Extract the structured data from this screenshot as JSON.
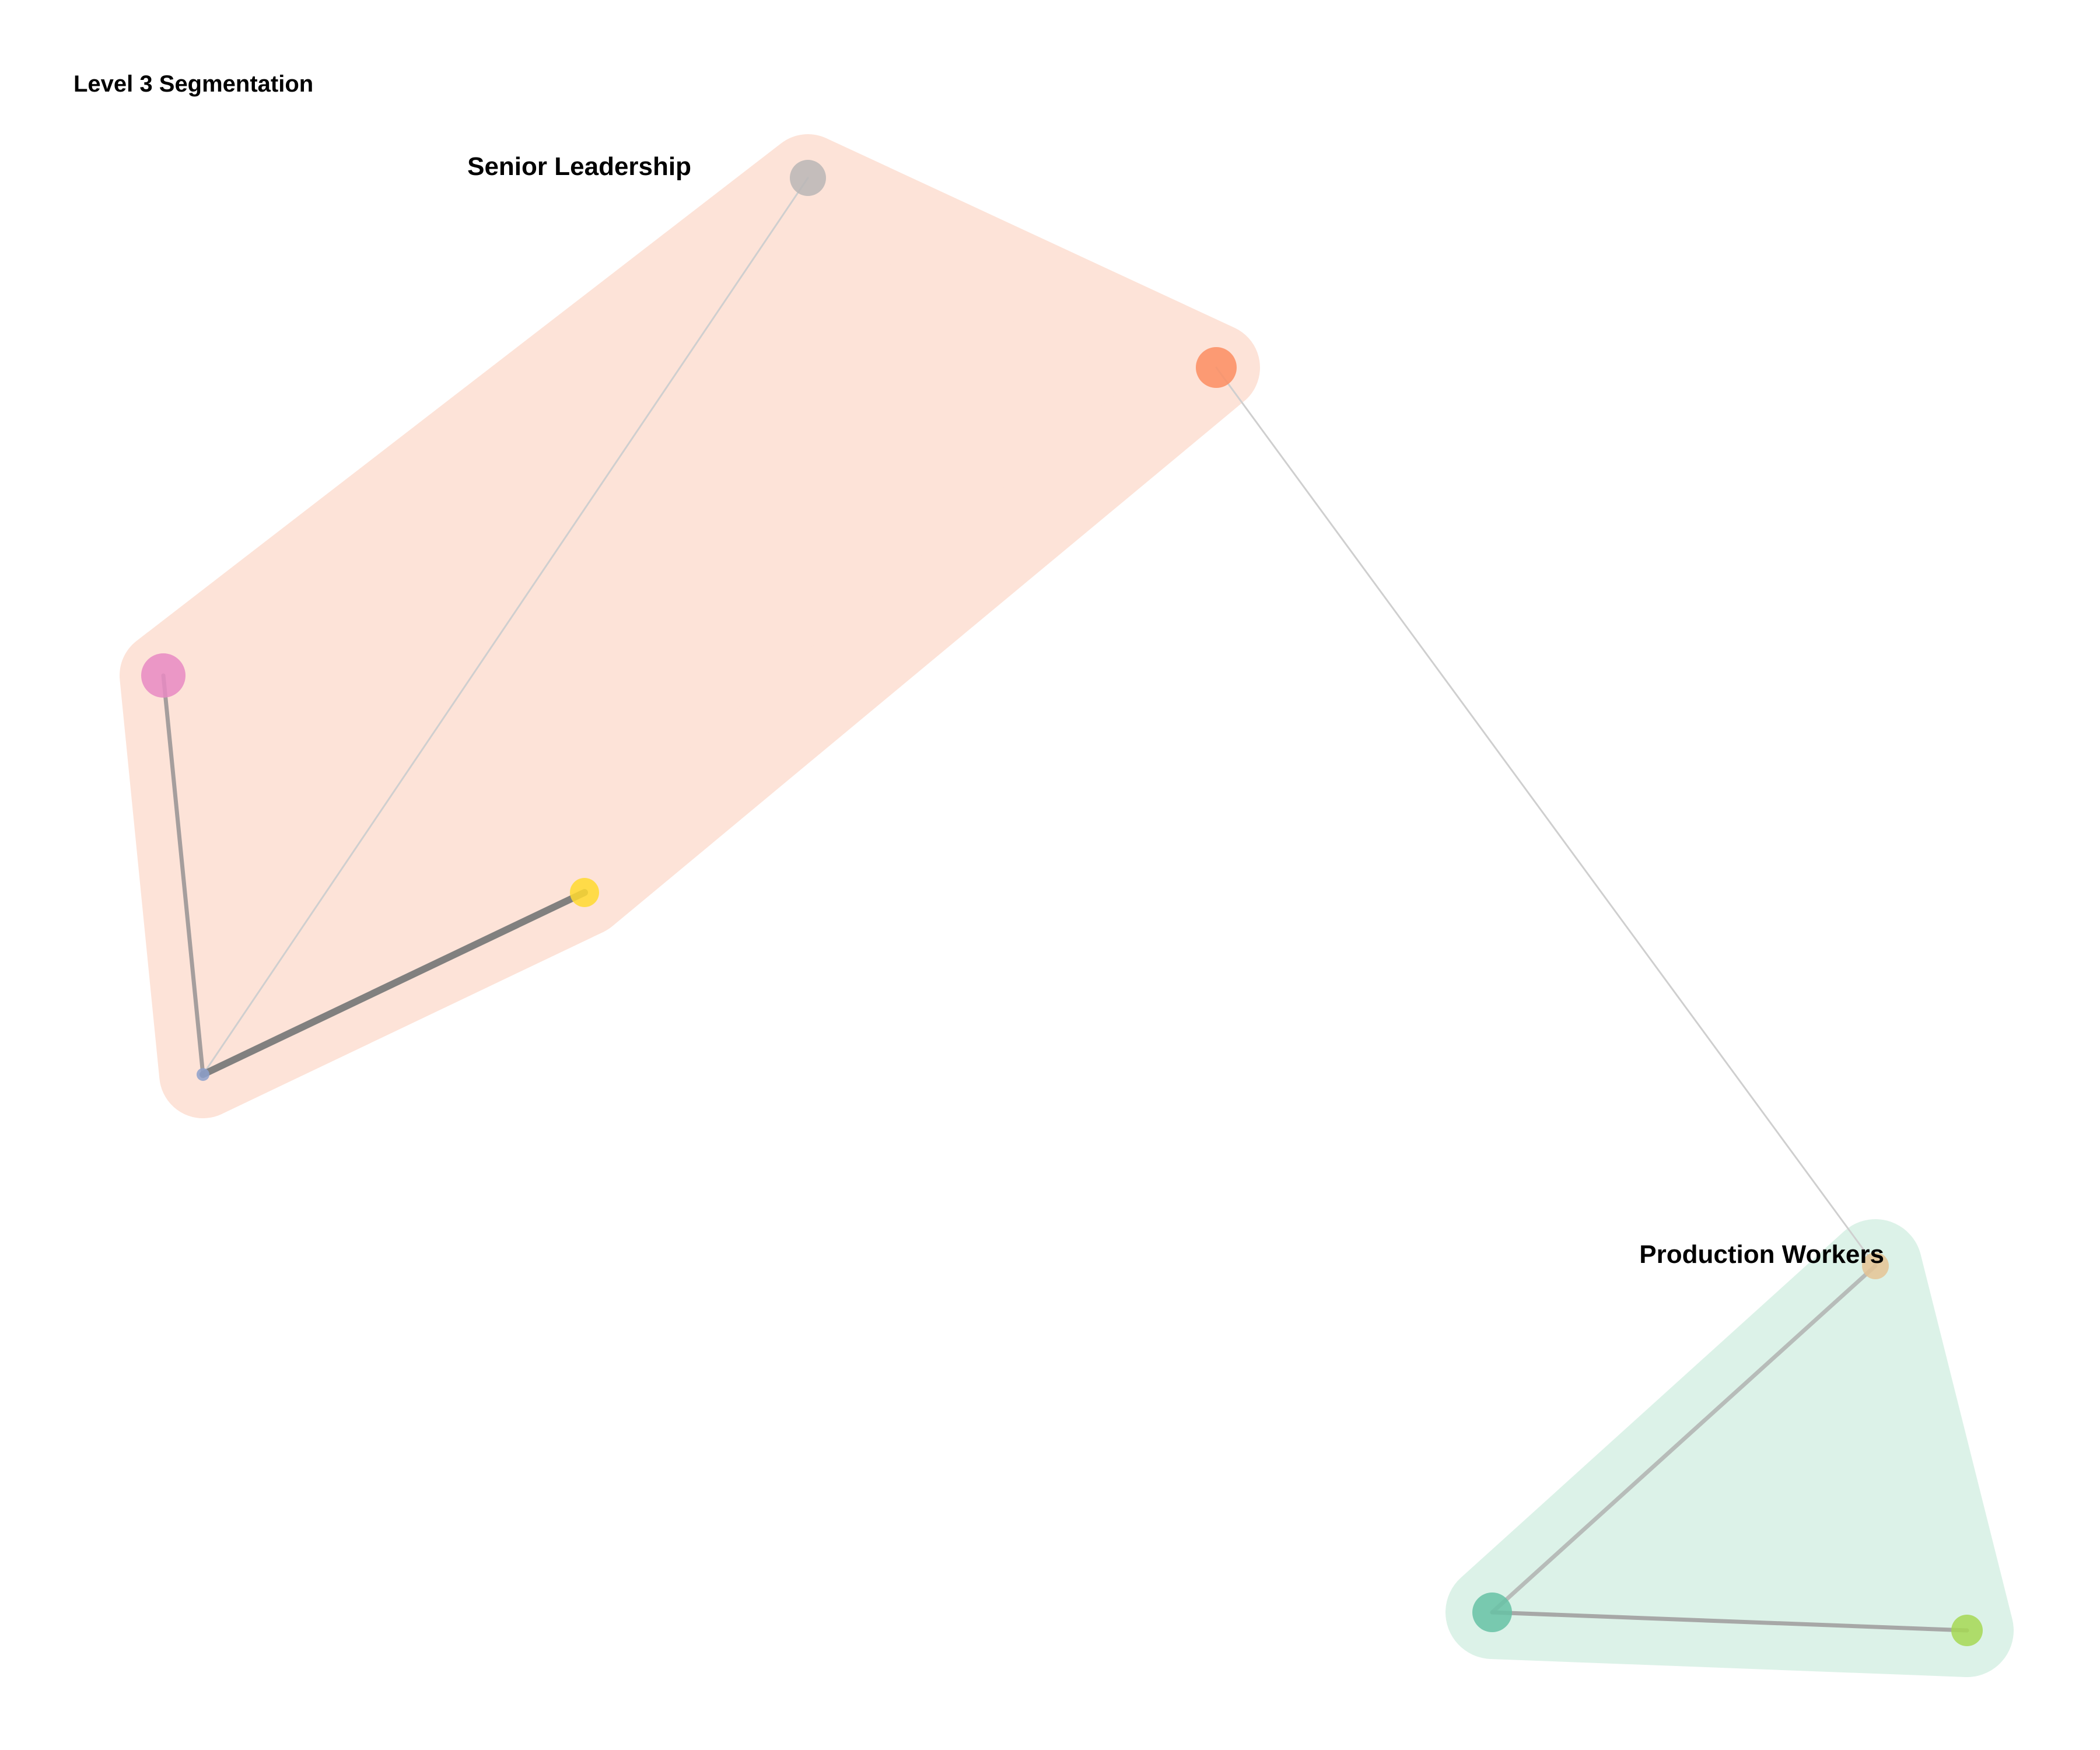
{
  "title": "Level 3 Segmentation",
  "clusters": [
    {
      "id": "senior-leadership",
      "label": "Senior Leadership",
      "fill_color": "#fde3d8",
      "members": [
        "n-gray",
        "n-orange",
        "n-pink",
        "n-yellow",
        "n-blue"
      ]
    },
    {
      "id": "production-workers",
      "label": "Production Workers",
      "fill_color": "#dcf2e8",
      "members": [
        "n-tan",
        "n-teal",
        "n-lime"
      ]
    }
  ],
  "nodes": [
    {
      "id": "n-gray",
      "color": "#bab6b6"
    },
    {
      "id": "n-orange",
      "color": "#fc8d62"
    },
    {
      "id": "n-pink",
      "color": "#e78ac3"
    },
    {
      "id": "n-yellow",
      "color": "#ffd92f"
    },
    {
      "id": "n-blue",
      "color": "#8da0cb"
    },
    {
      "id": "n-tan",
      "color": "#e5c494"
    },
    {
      "id": "n-teal",
      "color": "#66c2a5"
    },
    {
      "id": "n-lime",
      "color": "#a6d854"
    }
  ],
  "edges": [
    {
      "source": "n-blue",
      "target": "n-gray",
      "strength": "weak",
      "color": "#cfcfcf"
    },
    {
      "source": "n-pink",
      "target": "n-blue",
      "strength": "medium",
      "color": "#a09a9a"
    },
    {
      "source": "n-blue",
      "target": "n-yellow",
      "strength": "strong",
      "color": "#7a7a7a"
    },
    {
      "source": "n-orange",
      "target": "n-tan",
      "strength": "weak",
      "color": "#cfcfcf"
    },
    {
      "source": "n-tan",
      "target": "n-teal",
      "strength": "medium",
      "color": "#b4b8b6"
    },
    {
      "source": "n-teal",
      "target": "n-lime",
      "strength": "medium",
      "color": "#a3a3a3"
    }
  ]
}
